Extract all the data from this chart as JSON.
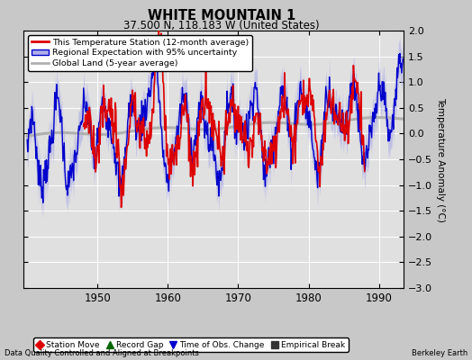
{
  "title": "WHITE MOUNTAIN 1",
  "subtitle": "37.500 N, 118.183 W (United States)",
  "ylabel": "Temperature Anomaly (°C)",
  "xlabel_bottom_left": "Data Quality Controlled and Aligned at Breakpoints",
  "xlabel_bottom_right": "Berkeley Earth",
  "ylim": [
    -3,
    2
  ],
  "xlim": [
    1939.5,
    1993.5
  ],
  "yticks": [
    -3,
    -2.5,
    -2,
    -1.5,
    -1,
    -0.5,
    0,
    0.5,
    1,
    1.5,
    2
  ],
  "xticks": [
    1950,
    1960,
    1970,
    1980,
    1990
  ],
  "bg_color": "#c8c8c8",
  "plot_bg_color": "#e0e0e0",
  "red_color": "#dd0000",
  "blue_color": "#0000cc",
  "blue_fill_color": "#b0b0e8",
  "gray_color": "#b0b0b0",
  "legend_items": [
    {
      "label": "This Temperature Station (12-month average)",
      "color": "#dd0000",
      "lw": 2
    },
    {
      "label": "Regional Expectation with 95% uncertainty",
      "color": "#0000cc",
      "lw": 1.5
    },
    {
      "label": "Global Land (5-year average)",
      "color": "#b0b0b0",
      "lw": 2
    }
  ],
  "bottom_legend": [
    {
      "marker": "D",
      "color": "#dd0000",
      "label": "Station Move"
    },
    {
      "marker": "^",
      "color": "#006600",
      "label": "Record Gap"
    },
    {
      "marker": "v",
      "color": "#0000cc",
      "label": "Time of Obs. Change"
    },
    {
      "marker": "s",
      "color": "#333333",
      "label": "Empirical Break"
    }
  ]
}
